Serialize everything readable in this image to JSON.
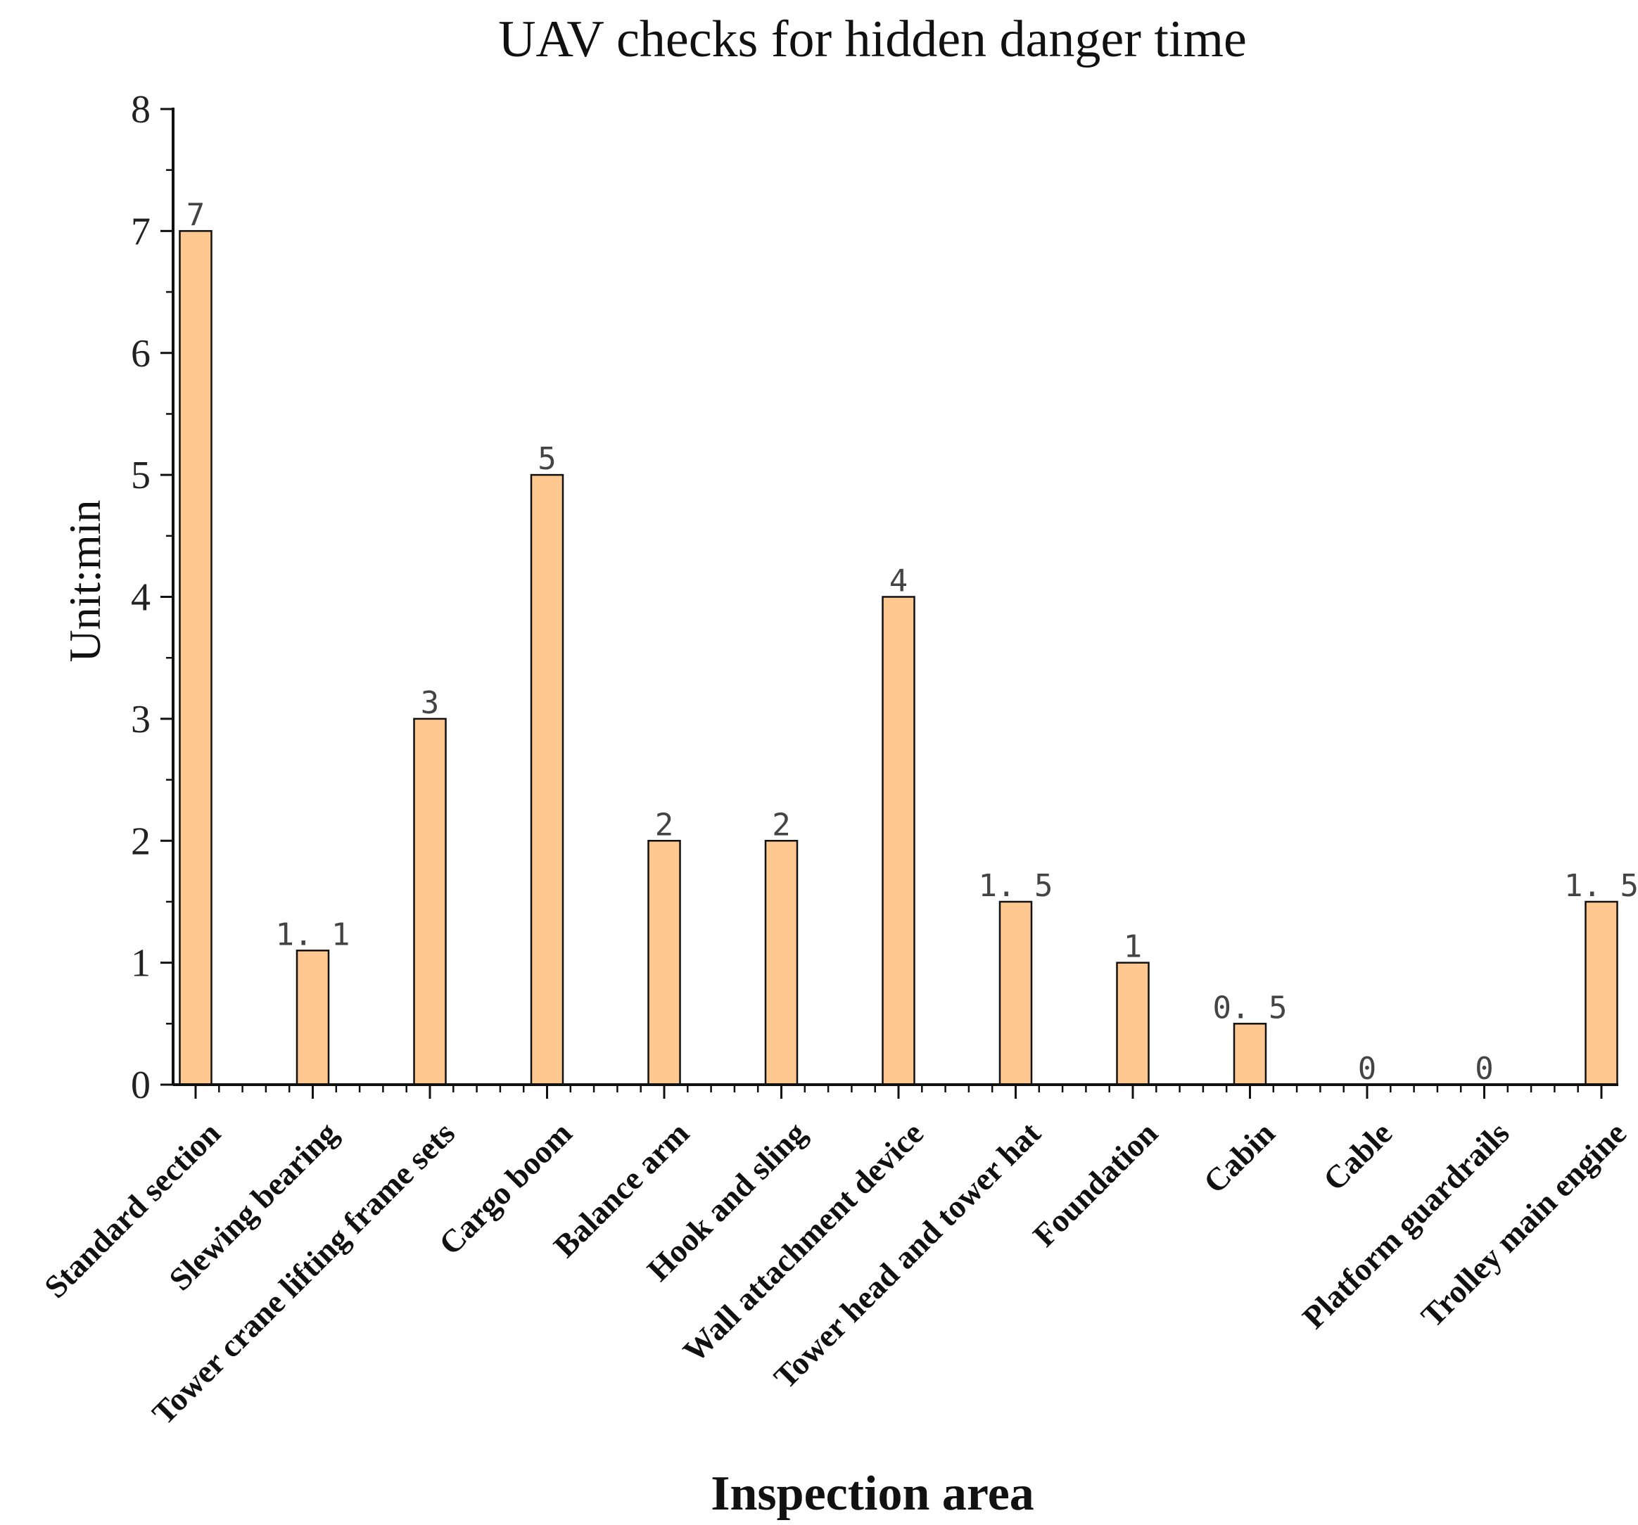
{
  "chart_data": {
    "type": "bar",
    "title": "UAV checks for hidden danger time",
    "xlabel": "Inspection area",
    "ylabel": "Unit:min",
    "ylim": [
      0,
      8
    ],
    "yticks": [
      "0",
      "1",
      "2",
      "3",
      "4",
      "5",
      "6",
      "7",
      "8"
    ],
    "categories": [
      "Standard section",
      "Slewing bearing",
      "Tower crane lifting frame sets",
      "Cargo boom",
      "Balance arm",
      "Hook and sling",
      "Wall attachment device",
      "Tower head and tower hat",
      "Foundation",
      "Cabin",
      "Cable",
      "Platform guardrails",
      "Trolley main engine"
    ],
    "values": [
      7,
      1.1,
      3,
      5,
      2,
      2,
      4,
      1.5,
      1,
      0.5,
      0,
      0,
      1.5
    ],
    "data_labels": [
      "7",
      "1. 1",
      "3",
      "5",
      "2",
      "2",
      "4",
      "1. 5",
      "1",
      "0. 5",
      "0",
      "0",
      "1. 5"
    ],
    "bar_color": "#FFC890",
    "bar_edge_color": "#111111",
    "grid": false,
    "legend": "none"
  }
}
